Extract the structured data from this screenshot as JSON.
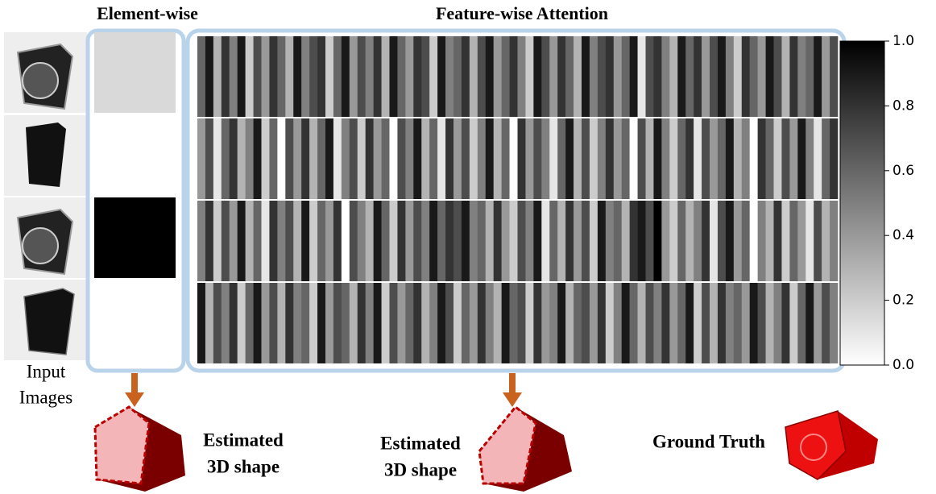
{
  "header": {
    "element_title": "Element-wise",
    "feature_title": "Feature-wise Attention"
  },
  "input_label": [
    "Input",
    "Images"
  ],
  "element_wise": {
    "values": [
      0.15,
      0,
      1,
      0
    ]
  },
  "feature_wise": {
    "rows": [
      [
        0.6,
        0.9,
        0.3,
        0.8,
        0.5,
        0.9,
        0.2,
        0.7,
        0.4,
        0.8,
        0.6,
        0.3,
        0.9,
        0.5,
        0.7,
        0.8,
        0.2,
        0.6,
        0.9,
        0.4,
        0.7,
        0.5,
        0.8,
        0.3,
        0.9,
        0.6,
        0.4,
        0.8,
        0.7,
        0.2,
        0.9,
        0.5,
        0.6,
        0.8,
        0.3,
        0.7,
        0.9,
        0.4,
        0.6,
        0.8,
        0.5,
        0.2,
        0.9,
        0.7,
        0.4,
        0.8,
        0.6,
        0.3,
        0.9,
        0.5,
        0.7,
        0.8,
        0.4,
        0.6,
        0.9,
        0.1,
        0.7,
        0.8,
        0.5,
        0.3,
        0.9,
        0.6,
        0.8,
        0.4,
        0.7,
        0.9,
        0.5,
        0.2,
        0.8,
        0.6,
        0.4,
        0.9,
        0.7,
        0.3,
        0.8,
        0.5,
        0.6,
        0.9,
        0.4,
        0.7
      ],
      [
        0.4,
        0.7,
        0.1,
        0.6,
        0.8,
        0.3,
        0.5,
        0.9,
        0.2,
        0.6,
        0.0,
        0.7,
        0.4,
        0.8,
        0.3,
        0.6,
        0.9,
        0.1,
        0.5,
        0.7,
        0.2,
        0.8,
        0.4,
        0.6,
        0.0,
        0.7,
        0.5,
        0.9,
        0.3,
        0.6,
        0.1,
        0.8,
        0.4,
        0.7,
        0.2,
        0.5,
        0.9,
        0.3,
        0.6,
        0.0,
        0.8,
        0.4,
        0.7,
        0.5,
        0.1,
        0.6,
        0.9,
        0.3,
        0.7,
        0.2,
        0.5,
        0.8,
        0.4,
        0.6,
        0.0,
        0.7,
        0.3,
        0.9,
        0.5,
        0.2,
        0.6,
        0.8,
        0.1,
        0.7,
        0.4,
        0.6,
        0.9,
        0.3,
        0.5,
        0.0,
        0.8,
        0.6,
        0.2,
        0.7,
        0.4,
        0.9,
        0.5,
        0.1,
        0.6,
        0.8
      ],
      [
        0.5,
        0.8,
        0.2,
        0.7,
        0.4,
        0.9,
        0.3,
        0.6,
        0.1,
        0.8,
        0.5,
        0.7,
        0.3,
        0.9,
        0.2,
        0.6,
        0.4,
        0.8,
        0.0,
        0.7,
        0.5,
        0.3,
        0.9,
        0.6,
        0.2,
        0.8,
        0.4,
        0.7,
        0.5,
        0.9,
        0.6,
        0.8,
        0.7,
        0.9,
        0.5,
        0.6,
        0.3,
        0.8,
        0.4,
        0.2,
        0.7,
        0.5,
        0.9,
        0.1,
        0.6,
        0.3,
        0.8,
        0.4,
        0.7,
        0.2,
        0.9,
        0.5,
        0.6,
        0.3,
        0.8,
        0.9,
        0.7,
        1.0,
        0.4,
        0.2,
        0.6,
        0.3,
        0.5,
        0.8,
        0.1,
        0.7,
        0.9,
        0.4,
        0.6,
        0.0,
        0.5,
        0.3,
        0.8,
        0.2,
        0.6,
        0.4,
        0.1,
        0.7,
        0.3,
        0.5
      ],
      [
        0.9,
        0.3,
        0.7,
        0.5,
        0.8,
        0.2,
        0.6,
        0.9,
        0.4,
        0.7,
        0.3,
        0.8,
        0.5,
        0.6,
        0.2,
        0.9,
        0.4,
        0.7,
        0.6,
        0.3,
        0.8,
        0.5,
        0.9,
        0.2,
        0.7,
        0.4,
        0.6,
        0.8,
        0.3,
        0.5,
        0.9,
        0.7,
        0.2,
        0.6,
        0.4,
        0.8,
        0.5,
        0.3,
        0.9,
        0.6,
        0.7,
        0.2,
        0.8,
        0.4,
        0.5,
        0.9,
        0.3,
        0.6,
        0.7,
        0.4,
        0.8,
        0.2,
        0.5,
        0.9,
        0.6,
        0.3,
        0.7,
        0.5,
        0.8,
        0.4,
        0.6,
        0.9,
        0.2,
        0.7,
        0.3,
        0.8,
        0.5,
        0.6,
        0.4,
        0.9,
        0.7,
        0.3,
        0.5,
        0.8,
        0.2,
        0.6,
        0.9,
        0.4,
        0.7,
        0.5
      ]
    ]
  },
  "colorbar": {
    "lim": [
      0,
      1
    ],
    "ticks": [
      {
        "value": 0,
        "label": "0.0"
      },
      0.2,
      0.4,
      0.6,
      0.8,
      {
        "value": 1,
        "label": "1.0"
      }
    ]
  },
  "outputs": [
    {
      "label": [
        "Estimated",
        "3D shape"
      ]
    },
    {
      "label": [
        "Estimated",
        "3D shape"
      ]
    },
    {
      "label": [
        "Ground Truth"
      ]
    }
  ]
}
